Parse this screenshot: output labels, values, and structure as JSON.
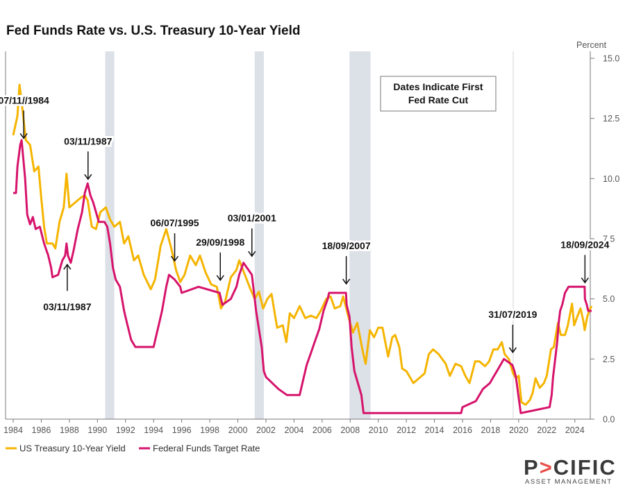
{
  "chart_data": {
    "type": "line",
    "title": "Fed Funds Rate vs. U.S. Treasury 10-Year Yield",
    "y_unit_label": "Percent",
    "xlim": [
      1984.0,
      2025.3
    ],
    "ylim": [
      0,
      15
    ],
    "x_ticks": [
      "1984",
      "1986",
      "1988",
      "1990",
      "1992",
      "1994",
      "1996",
      "1998",
      "2000",
      "2002",
      "2004",
      "2006",
      "2008",
      "2010",
      "2012",
      "2014",
      "2016",
      "2018",
      "2020",
      "2022",
      "2024"
    ],
    "y_ticks": [
      "0.0",
      "2.5",
      "5.0",
      "7.5",
      "10.0",
      "12.5",
      "15.0"
    ],
    "y_axis_position": "right",
    "grid": false,
    "legend_position": "bottom-left",
    "note": [
      "Dates Indicate First",
      "Fed Rate Cut"
    ],
    "recessions": [
      [
        1990.55,
        1991.2
      ],
      [
        2001.2,
        2001.85
      ],
      [
        2007.95,
        2009.45
      ]
    ],
    "series": [
      {
        "name": "US Treasury 10-Year Yield",
        "color": "#F5B400",
        "points": [
          [
            1984.0,
            11.8
          ],
          [
            1984.3,
            12.6
          ],
          [
            1984.45,
            13.9
          ],
          [
            1984.6,
            13.2
          ],
          [
            1984.9,
            11.6
          ],
          [
            1985.2,
            11.4
          ],
          [
            1985.5,
            10.3
          ],
          [
            1985.8,
            10.5
          ],
          [
            1986.0,
            9.2
          ],
          [
            1986.2,
            8.0
          ],
          [
            1986.4,
            7.3
          ],
          [
            1986.8,
            7.3
          ],
          [
            1987.0,
            7.1
          ],
          [
            1987.3,
            8.2
          ],
          [
            1987.6,
            8.8
          ],
          [
            1987.8,
            10.2
          ],
          [
            1988.0,
            8.8
          ],
          [
            1988.4,
            9.0
          ],
          [
            1988.8,
            9.2
          ],
          [
            1989.1,
            9.3
          ],
          [
            1989.3,
            9.1
          ],
          [
            1989.6,
            8.0
          ],
          [
            1989.9,
            7.9
          ],
          [
            1990.2,
            8.6
          ],
          [
            1990.6,
            8.8
          ],
          [
            1990.9,
            8.3
          ],
          [
            1991.2,
            8.0
          ],
          [
            1991.6,
            8.2
          ],
          [
            1991.9,
            7.3
          ],
          [
            1992.2,
            7.6
          ],
          [
            1992.6,
            6.6
          ],
          [
            1992.9,
            6.8
          ],
          [
            1993.3,
            6.0
          ],
          [
            1993.8,
            5.4
          ],
          [
            1994.1,
            5.8
          ],
          [
            1994.5,
            7.2
          ],
          [
            1994.9,
            7.9
          ],
          [
            1995.3,
            7.0
          ],
          [
            1995.6,
            6.2
          ],
          [
            1995.9,
            5.7
          ],
          [
            1996.2,
            6.0
          ],
          [
            1996.6,
            6.8
          ],
          [
            1997.0,
            6.4
          ],
          [
            1997.3,
            6.8
          ],
          [
            1997.7,
            6.1
          ],
          [
            1998.1,
            5.6
          ],
          [
            1998.5,
            5.5
          ],
          [
            1998.8,
            4.6
          ],
          [
            1999.1,
            4.9
          ],
          [
            1999.5,
            5.9
          ],
          [
            1999.9,
            6.2
          ],
          [
            2000.1,
            6.6
          ],
          [
            2000.5,
            6.0
          ],
          [
            2000.9,
            5.4
          ],
          [
            2001.2,
            5.0
          ],
          [
            2001.5,
            5.3
          ],
          [
            2001.8,
            4.6
          ],
          [
            2002.1,
            5.0
          ],
          [
            2002.4,
            5.2
          ],
          [
            2002.8,
            3.8
          ],
          [
            2003.2,
            3.9
          ],
          [
            2003.45,
            3.2
          ],
          [
            2003.7,
            4.4
          ],
          [
            2004.0,
            4.2
          ],
          [
            2004.4,
            4.7
          ],
          [
            2004.8,
            4.2
          ],
          [
            2005.2,
            4.3
          ],
          [
            2005.6,
            4.2
          ],
          [
            2005.9,
            4.5
          ],
          [
            2006.3,
            5.0
          ],
          [
            2006.6,
            5.1
          ],
          [
            2006.9,
            4.6
          ],
          [
            2007.3,
            4.7
          ],
          [
            2007.5,
            5.1
          ],
          [
            2007.9,
            4.2
          ],
          [
            2008.2,
            3.6
          ],
          [
            2008.5,
            4.0
          ],
          [
            2008.9,
            2.8
          ],
          [
            2009.1,
            2.3
          ],
          [
            2009.4,
            3.7
          ],
          [
            2009.7,
            3.4
          ],
          [
            2010.0,
            3.8
          ],
          [
            2010.3,
            3.8
          ],
          [
            2010.7,
            2.6
          ],
          [
            2011.0,
            3.4
          ],
          [
            2011.2,
            3.5
          ],
          [
            2011.5,
            3.0
          ],
          [
            2011.7,
            2.1
          ],
          [
            2012.0,
            2.0
          ],
          [
            2012.5,
            1.5
          ],
          [
            2012.9,
            1.7
          ],
          [
            2013.3,
            1.9
          ],
          [
            2013.6,
            2.7
          ],
          [
            2013.9,
            2.9
          ],
          [
            2014.3,
            2.7
          ],
          [
            2014.8,
            2.3
          ],
          [
            2015.1,
            1.8
          ],
          [
            2015.5,
            2.3
          ],
          [
            2015.9,
            2.2
          ],
          [
            2016.2,
            1.8
          ],
          [
            2016.5,
            1.5
          ],
          [
            2016.9,
            2.4
          ],
          [
            2017.2,
            2.4
          ],
          [
            2017.6,
            2.2
          ],
          [
            2017.9,
            2.4
          ],
          [
            2018.2,
            2.9
          ],
          [
            2018.5,
            2.9
          ],
          [
            2018.8,
            3.2
          ],
          [
            2019.0,
            2.7
          ],
          [
            2019.3,
            2.5
          ],
          [
            2019.6,
            1.9
          ],
          [
            2019.8,
            1.7
          ],
          [
            2020.0,
            1.8
          ],
          [
            2020.2,
            0.7
          ],
          [
            2020.5,
            0.6
          ],
          [
            2020.8,
            0.8
          ],
          [
            2021.0,
            1.1
          ],
          [
            2021.2,
            1.7
          ],
          [
            2021.5,
            1.3
          ],
          [
            2021.8,
            1.5
          ],
          [
            2022.0,
            1.8
          ],
          [
            2022.3,
            2.9
          ],
          [
            2022.5,
            3.0
          ],
          [
            2022.8,
            4.0
          ],
          [
            2023.0,
            3.5
          ],
          [
            2023.3,
            3.5
          ],
          [
            2023.5,
            3.9
          ],
          [
            2023.8,
            4.8
          ],
          [
            2023.95,
            3.9
          ],
          [
            2024.2,
            4.3
          ],
          [
            2024.4,
            4.6
          ],
          [
            2024.6,
            4.1
          ],
          [
            2024.7,
            3.7
          ],
          [
            2024.9,
            4.3
          ],
          [
            2025.1,
            4.6
          ],
          [
            2025.2,
            4.7
          ]
        ]
      },
      {
        "name": "Federal Funds Target Rate",
        "color": "#D6136B",
        "points": [
          [
            1984.0,
            9.4
          ],
          [
            1984.2,
            9.4
          ],
          [
            1984.3,
            10.5
          ],
          [
            1984.5,
            11.4
          ],
          [
            1984.6,
            11.6
          ],
          [
            1984.85,
            10.0
          ],
          [
            1985.0,
            8.5
          ],
          [
            1985.2,
            8.1
          ],
          [
            1985.4,
            8.4
          ],
          [
            1985.6,
            7.9
          ],
          [
            1985.9,
            8.0
          ],
          [
            1986.2,
            7.3
          ],
          [
            1986.5,
            6.8
          ],
          [
            1986.7,
            6.3
          ],
          [
            1986.8,
            5.9
          ],
          [
            1987.2,
            6.0
          ],
          [
            1987.5,
            6.6
          ],
          [
            1987.7,
            6.8
          ],
          [
            1987.8,
            7.3
          ],
          [
            1987.9,
            6.8
          ],
          [
            1988.1,
            6.5
          ],
          [
            1988.3,
            7.0
          ],
          [
            1988.6,
            7.9
          ],
          [
            1988.9,
            8.6
          ],
          [
            1989.1,
            9.4
          ],
          [
            1989.3,
            9.8
          ],
          [
            1989.5,
            9.3
          ],
          [
            1989.7,
            9.0
          ],
          [
            1989.9,
            8.6
          ],
          [
            1990.1,
            8.2
          ],
          [
            1990.5,
            8.2
          ],
          [
            1990.7,
            8.0
          ],
          [
            1990.9,
            7.3
          ],
          [
            1991.1,
            6.3
          ],
          [
            1991.3,
            5.8
          ],
          [
            1991.6,
            5.5
          ],
          [
            1991.9,
            4.5
          ],
          [
            1992.1,
            4.0
          ],
          [
            1992.4,
            3.3
          ],
          [
            1992.7,
            3.0
          ],
          [
            1993.0,
            3.0
          ],
          [
            1994.0,
            3.0
          ],
          [
            1994.2,
            3.5
          ],
          [
            1994.4,
            4.0
          ],
          [
            1994.6,
            4.5
          ],
          [
            1994.9,
            5.5
          ],
          [
            1995.1,
            6.0
          ],
          [
            1995.5,
            5.8
          ],
          [
            1995.9,
            5.5
          ],
          [
            1996.0,
            5.25
          ],
          [
            1997.2,
            5.5
          ],
          [
            1998.7,
            5.25
          ],
          [
            1998.8,
            5.0
          ],
          [
            1998.9,
            4.75
          ],
          [
            1999.5,
            5.0
          ],
          [
            1999.7,
            5.25
          ],
          [
            1999.9,
            5.5
          ],
          [
            2000.1,
            6.0
          ],
          [
            2000.4,
            6.5
          ],
          [
            2001.0,
            6.0
          ],
          [
            2001.2,
            5.0
          ],
          [
            2001.3,
            4.5
          ],
          [
            2001.5,
            3.75
          ],
          [
            2001.7,
            3.0
          ],
          [
            2001.85,
            2.0
          ],
          [
            2002.0,
            1.75
          ],
          [
            2002.9,
            1.25
          ],
          [
            2003.5,
            1.0
          ],
          [
            2004.4,
            1.0
          ],
          [
            2004.6,
            1.5
          ],
          [
            2004.9,
            2.25
          ],
          [
            2005.2,
            2.75
          ],
          [
            2005.5,
            3.25
          ],
          [
            2005.8,
            3.75
          ],
          [
            2006.1,
            4.5
          ],
          [
            2006.4,
            5.0
          ],
          [
            2006.5,
            5.25
          ],
          [
            2007.7,
            5.25
          ],
          [
            2007.75,
            4.75
          ],
          [
            2007.95,
            4.25
          ],
          [
            2008.1,
            3.0
          ],
          [
            2008.3,
            2.0
          ],
          [
            2008.8,
            1.0
          ],
          [
            2008.95,
            0.25
          ],
          [
            2015.9,
            0.25
          ],
          [
            2016.0,
            0.5
          ],
          [
            2016.95,
            0.75
          ],
          [
            2017.2,
            1.0
          ],
          [
            2017.45,
            1.25
          ],
          [
            2017.95,
            1.5
          ],
          [
            2018.2,
            1.75
          ],
          [
            2018.45,
            2.0
          ],
          [
            2018.7,
            2.25
          ],
          [
            2018.95,
            2.5
          ],
          [
            2019.55,
            2.25
          ],
          [
            2019.7,
            2.0
          ],
          [
            2019.8,
            1.75
          ],
          [
            2020.15,
            0.25
          ],
          [
            2022.2,
            0.5
          ],
          [
            2022.35,
            1.0
          ],
          [
            2022.45,
            1.75
          ],
          [
            2022.6,
            2.5
          ],
          [
            2022.75,
            3.25
          ],
          [
            2022.85,
            4.0
          ],
          [
            2022.95,
            4.5
          ],
          [
            2023.1,
            4.75
          ],
          [
            2023.3,
            5.25
          ],
          [
            2023.55,
            5.5
          ],
          [
            2024.7,
            5.5
          ],
          [
            2024.72,
            5.0
          ],
          [
            2024.85,
            4.75
          ],
          [
            2024.95,
            4.5
          ],
          [
            2025.2,
            4.5
          ]
        ]
      }
    ],
    "annotations": [
      {
        "text": "07/11//1984",
        "target": [
          1984.75,
          11.5
        ],
        "anchor": "top"
      },
      {
        "text": "03/11/1987",
        "target": [
          1989.33,
          9.8
        ],
        "anchor": "top"
      },
      {
        "text": "03/11/1987",
        "target": [
          1987.85,
          6.6
        ],
        "anchor": "bottom"
      },
      {
        "text": "06/07/1995",
        "target": [
          1995.5,
          6.4
        ],
        "anchor": "top"
      },
      {
        "text": "29/09/1998",
        "target": [
          1998.75,
          5.6
        ],
        "anchor": "top"
      },
      {
        "text": "03/01/2001",
        "target": [
          2001.0,
          6.6
        ],
        "anchor": "top"
      },
      {
        "text": "18/09/2007",
        "target": [
          2007.72,
          5.45
        ],
        "anchor": "top"
      },
      {
        "text": "31/07/2019",
        "target": [
          2019.58,
          2.6
        ],
        "anchor": "top"
      },
      {
        "text": "18/09/2024",
        "target": [
          2024.72,
          5.5
        ],
        "anchor": "top"
      }
    ]
  },
  "brand": {
    "logo_text": "P>CIFIC",
    "tagline": "ASSET MANAGEMENT",
    "accent_color": "#E8504A"
  }
}
